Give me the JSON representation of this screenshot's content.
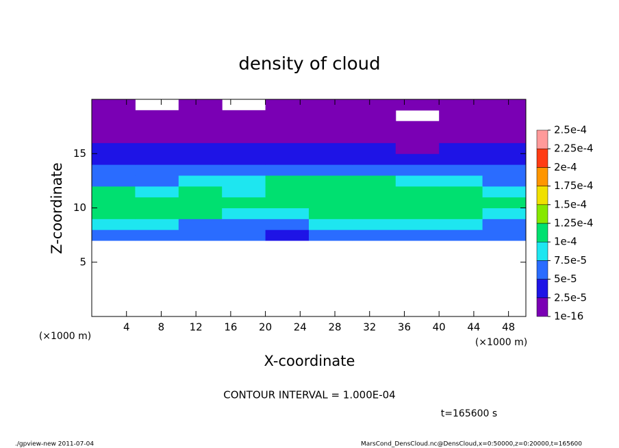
{
  "chart_data": {
    "type": "heatmap",
    "title": "density of cloud",
    "xlabel": "X-coordinate",
    "ylabel": "Z-coordinate",
    "y_unit": "(×1000 m)",
    "x_unit": "(×1000 m)",
    "xlim": [
      0,
      50
    ],
    "ylim": [
      0,
      20
    ],
    "xticks": [
      4,
      8,
      12,
      16,
      20,
      24,
      28,
      32,
      36,
      40,
      44,
      48
    ],
    "yticks": [
      5,
      10,
      15
    ],
    "xbins": [
      0,
      5,
      10,
      15,
      20,
      25,
      30,
      35,
      40,
      45,
      50
    ],
    "ybins": [
      7,
      8,
      9,
      10,
      11,
      12,
      13,
      14,
      15,
      16,
      17,
      18,
      19,
      20
    ],
    "z": [
      [
        6e-05,
        6e-05,
        6e-05,
        5e-05,
        4e-05,
        7e-05,
        7e-05,
        6e-05,
        6e-05,
        6e-05
      ],
      [
        8e-05,
        8e-05,
        7e-05,
        6e-05,
        7e-05,
        9e-05,
        9e-05,
        8e-05,
        8e-05,
        7e-05
      ],
      [
        0.000105,
        0.00011,
        0.0001,
        8e-05,
        9e-05,
        0.000105,
        0.00011,
        0.000105,
        0.0001,
        9e-05
      ],
      [
        0.00011,
        0.00011,
        0.00011,
        0.0001,
        0.000105,
        0.00011,
        0.000115,
        0.00011,
        0.000105,
        0.0001
      ],
      [
        0.0001,
        9e-05,
        0.000105,
        9e-05,
        0.00011,
        0.000115,
        0.000115,
        0.00011,
        0.0001,
        9e-05
      ],
      [
        7e-05,
        7e-05,
        8e-05,
        8e-05,
        0.0001,
        0.00011,
        0.0001,
        9e-05,
        8e-05,
        7e-05
      ],
      [
        5e-05,
        5e-05,
        6e-05,
        6e-05,
        7e-05,
        7e-05,
        6e-05,
        6e-05,
        5e-05,
        5e-05
      ],
      [
        3.5e-05,
        3.5e-05,
        4e-05,
        4e-05,
        4e-05,
        4e-05,
        3.5e-05,
        3e-05,
        3.5e-05,
        3.5e-05
      ],
      [
        2.5e-05,
        2.5e-05,
        3e-05,
        3e-05,
        3e-05,
        3e-05,
        2.5e-05,
        2e-05,
        2.5e-05,
        2.5e-05
      ],
      [
        2e-05,
        2e-05,
        2e-05,
        2e-05,
        2e-05,
        2e-05,
        1.5e-05,
        1.5e-05,
        1.5e-05,
        2e-05
      ],
      [
        1.5e-05,
        1.5e-05,
        1.5e-05,
        1e-05,
        1e-05,
        1e-05,
        1e-05,
        5e-06,
        1e-05,
        1e-05
      ],
      [
        1e-05,
        5e-06,
        5e-06,
        5e-06,
        5e-06,
        5e-06,
        5e-06,
        null,
        5e-06,
        5e-06
      ],
      [
        5e-06,
        null,
        5e-06,
        null,
        5e-06,
        5e-06,
        5e-06,
        5e-06,
        5e-06,
        5e-06
      ]
    ],
    "levels": [
      {
        "value": 1e-16,
        "label": "1e-16"
      },
      {
        "value": 2.5e-05,
        "label": "2.5e-5"
      },
      {
        "value": 5e-05,
        "label": "5e-5"
      },
      {
        "value": 7.5e-05,
        "label": "7.5e-5"
      },
      {
        "value": 0.0001,
        "label": "1e-4"
      },
      {
        "value": 0.000125,
        "label": "1.25e-4"
      },
      {
        "value": 0.00015,
        "label": "1.5e-4"
      },
      {
        "value": 0.000175,
        "label": "1.75e-4"
      },
      {
        "value": 0.0002,
        "label": "2e-4"
      },
      {
        "value": 0.000225,
        "label": "2.25e-4"
      },
      {
        "value": 0.00025,
        "label": "2.5e-4"
      }
    ],
    "colors": [
      "#7a00b4",
      "#1e14e6",
      "#2a6cff",
      "#1ee6f0",
      "#00e070",
      "#86e800",
      "#f0e000",
      "#ff9600",
      "#ff3c14",
      "#ff9a9a"
    ],
    "annotations": {
      "contour_interval": "CONTOUR INTERVAL = 1.000E-04",
      "time": "t=165600 s",
      "footer_left": "./gpview-new  2011-07-04",
      "footer_right": "MarsCond_DensCloud.nc@DensCloud,x=0:50000,z=0:20000,t=165600"
    }
  }
}
